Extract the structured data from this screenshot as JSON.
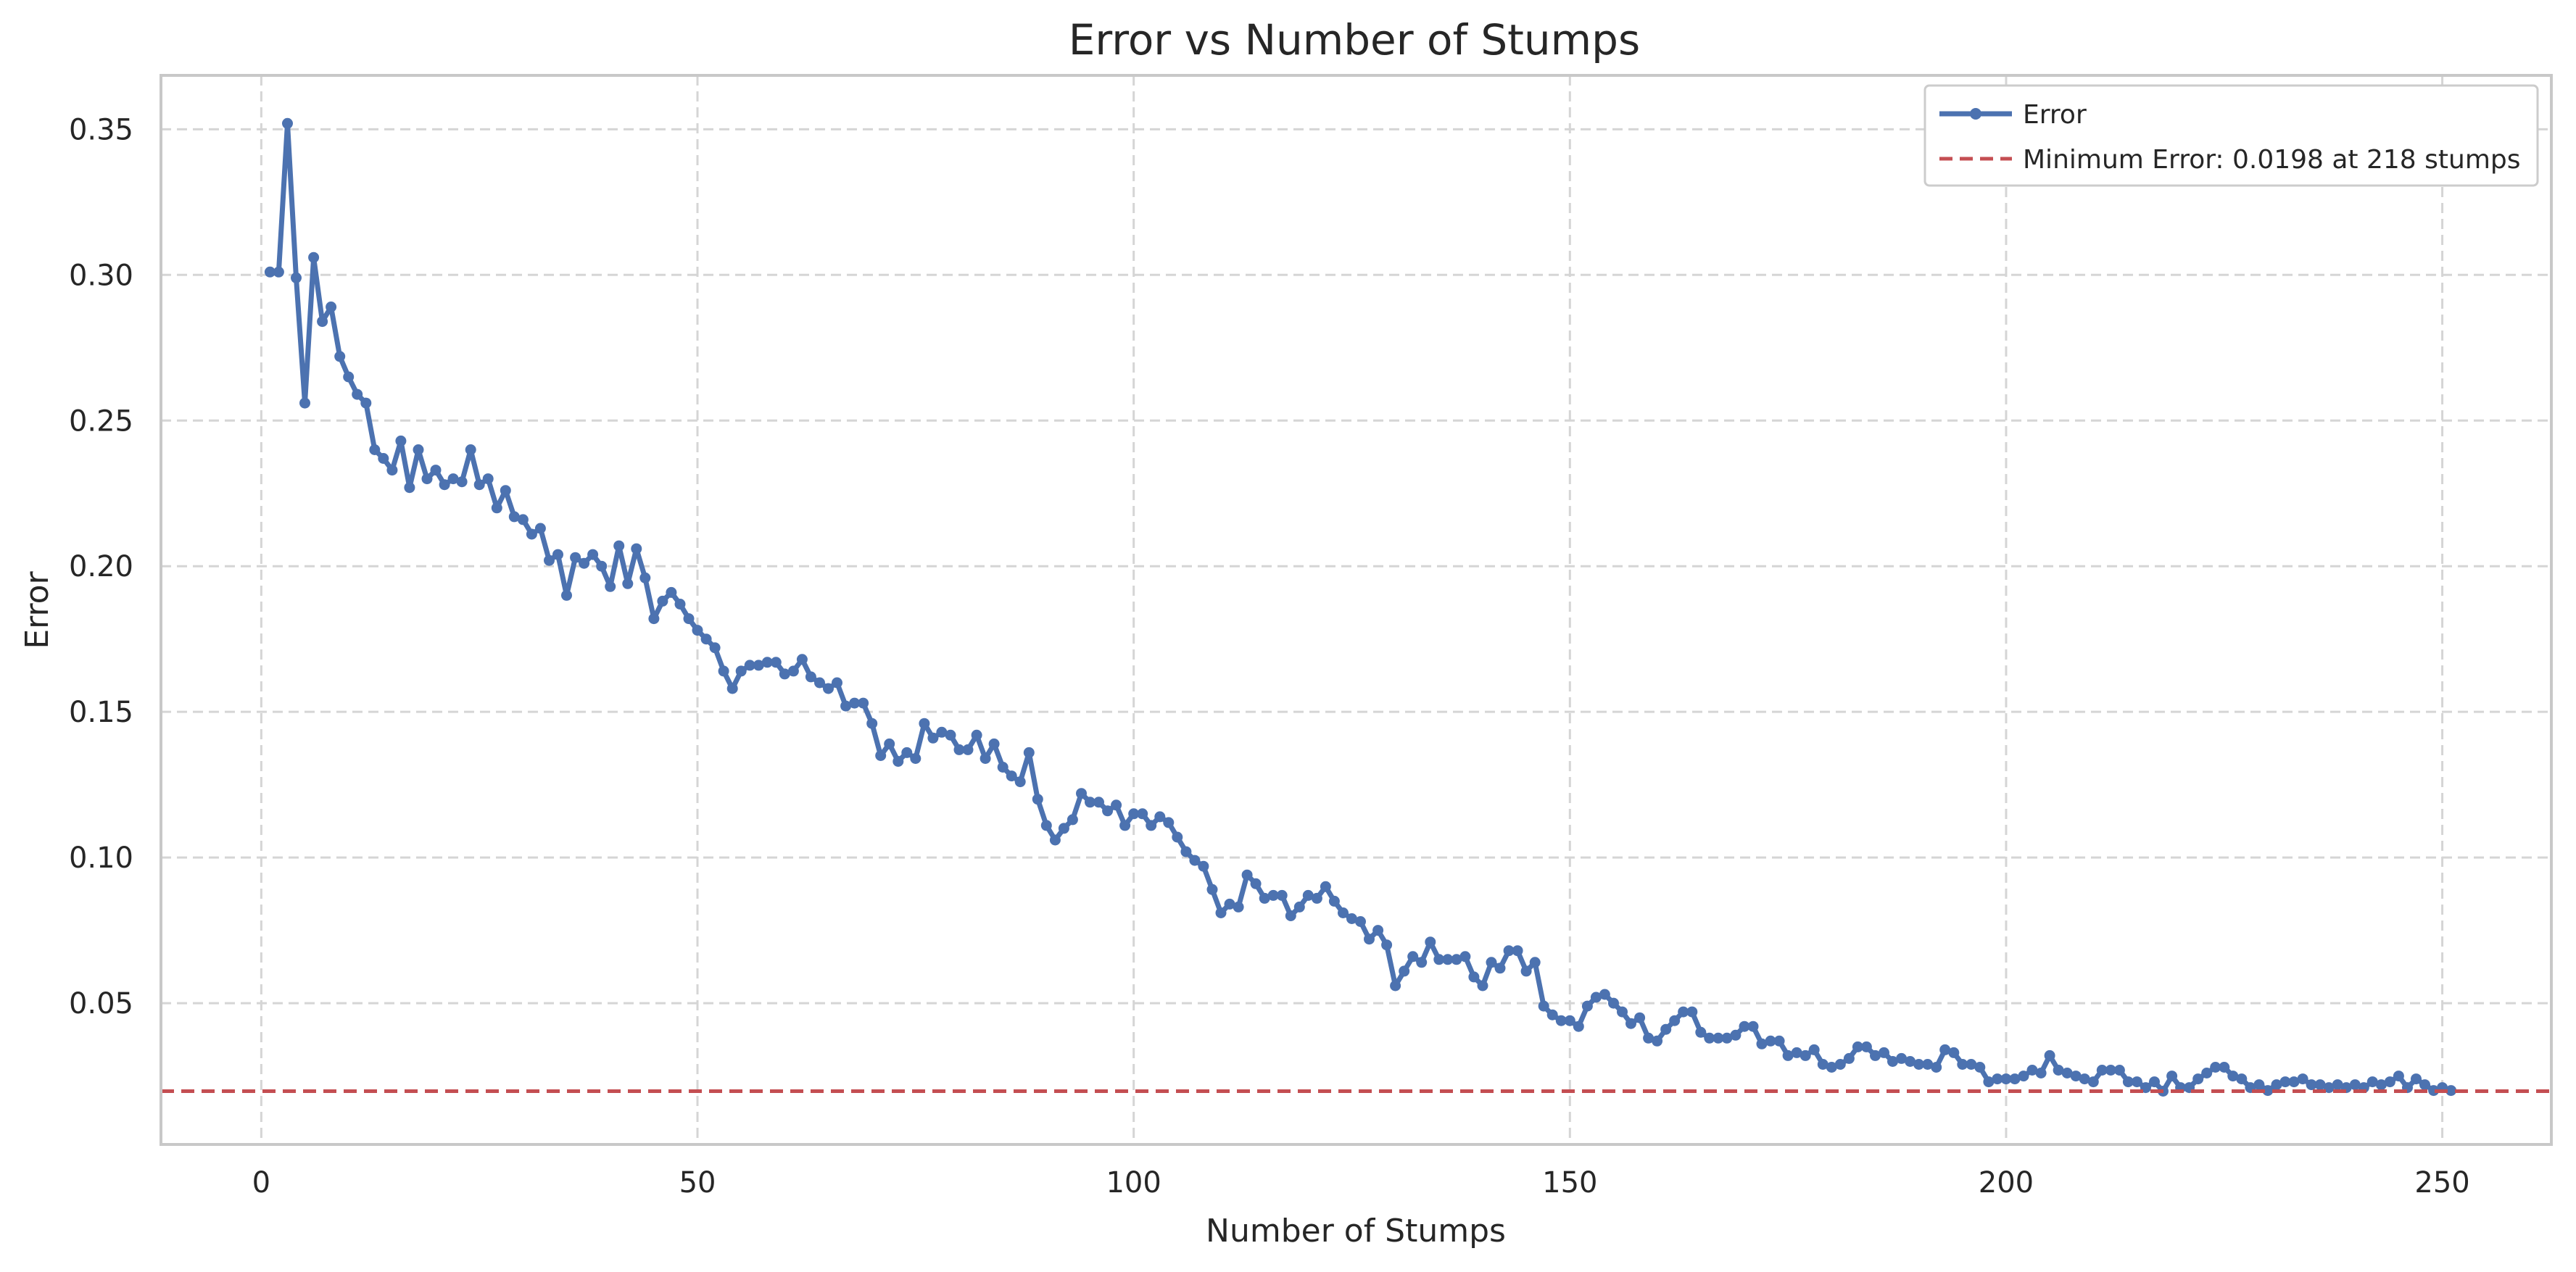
{
  "chart_data": {
    "type": "line",
    "title": "Error vs Number of Stumps",
    "xlabel": "Number of Stumps",
    "ylabel": "Error",
    "xlim": [
      -11.5,
      262.5
    ],
    "ylim": [
      0.0015,
      0.3685
    ],
    "x_ticks": [
      0,
      50,
      100,
      150,
      200,
      250
    ],
    "x_tick_labels": [
      "0",
      "50",
      "100",
      "150",
      "200",
      "250"
    ],
    "y_ticks": [
      0.05,
      0.1,
      0.15,
      0.2,
      0.25,
      0.3,
      0.35
    ],
    "y_tick_labels": [
      "0.05",
      "0.10",
      "0.15",
      "0.20",
      "0.25",
      "0.30",
      "0.35"
    ],
    "grid": true,
    "legend_position": "top-right",
    "series": [
      {
        "name": "Error",
        "color": "#4c72b0",
        "style": "solid-line-with-circle-markers",
        "x_start": 1,
        "x_step": 1,
        "values": [
          0.301,
          0.301,
          0.352,
          0.299,
          0.256,
          0.306,
          0.284,
          0.289,
          0.272,
          0.265,
          0.259,
          0.256,
          0.24,
          0.237,
          0.233,
          0.243,
          0.227,
          0.24,
          0.23,
          0.233,
          0.228,
          0.23,
          0.229,
          0.24,
          0.228,
          0.23,
          0.22,
          0.226,
          0.217,
          0.216,
          0.211,
          0.213,
          0.202,
          0.204,
          0.19,
          0.203,
          0.201,
          0.204,
          0.2,
          0.193,
          0.207,
          0.194,
          0.206,
          0.196,
          0.182,
          0.188,
          0.191,
          0.187,
          0.182,
          0.178,
          0.175,
          0.172,
          0.164,
          0.158,
          0.164,
          0.166,
          0.166,
          0.167,
          0.167,
          0.163,
          0.164,
          0.168,
          0.162,
          0.16,
          0.158,
          0.16,
          0.152,
          0.153,
          0.153,
          0.146,
          0.135,
          0.139,
          0.133,
          0.136,
          0.134,
          0.146,
          0.141,
          0.143,
          0.142,
          0.137,
          0.137,
          0.142,
          0.134,
          0.139,
          0.131,
          0.128,
          0.126,
          0.136,
          0.12,
          0.111,
          0.106,
          0.11,
          0.113,
          0.122,
          0.119,
          0.119,
          0.116,
          0.118,
          0.111,
          0.115,
          0.115,
          0.111,
          0.114,
          0.112,
          0.107,
          0.102,
          0.099,
          0.097,
          0.089,
          0.081,
          0.084,
          0.083,
          0.094,
          0.091,
          0.086,
          0.087,
          0.087,
          0.08,
          0.083,
          0.087,
          0.086,
          0.09,
          0.085,
          0.081,
          0.079,
          0.078,
          0.072,
          0.075,
          0.07,
          0.056,
          0.061,
          0.066,
          0.064,
          0.071,
          0.065,
          0.065,
          0.065,
          0.066,
          0.059,
          0.056,
          0.064,
          0.062,
          0.068,
          0.068,
          0.061,
          0.064,
          0.049,
          0.046,
          0.044,
          0.044,
          0.042,
          0.049,
          0.052,
          0.053,
          0.05,
          0.047,
          0.043,
          0.045,
          0.038,
          0.037,
          0.041,
          0.044,
          0.047,
          0.047,
          0.04,
          0.038,
          0.038,
          0.038,
          0.039,
          0.042,
          0.042,
          0.036,
          0.037,
          0.037,
          0.032,
          0.033,
          0.032,
          0.034,
          0.029,
          0.028,
          0.029,
          0.031,
          0.035,
          0.035,
          0.032,
          0.033,
          0.03,
          0.031,
          0.03,
          0.029,
          0.029,
          0.028,
          0.034,
          0.033,
          0.029,
          0.029,
          0.028,
          0.023,
          0.024,
          0.024,
          0.024,
          0.025,
          0.027,
          0.026,
          0.032,
          0.027,
          0.026,
          0.025,
          0.024,
          0.023,
          0.027,
          0.027,
          0.027,
          0.023,
          0.023,
          0.021,
          0.023,
          0.0198,
          0.025,
          0.021,
          0.021,
          0.024,
          0.026,
          0.028,
          0.028,
          0.025,
          0.024,
          0.021,
          0.022,
          0.02,
          0.022,
          0.023,
          0.023,
          0.024,
          0.022,
          0.022,
          0.021,
          0.022,
          0.021,
          0.022,
          0.021,
          0.023,
          0.022,
          0.023,
          0.025,
          0.021,
          0.024,
          0.022,
          0.02,
          0.021,
          0.02
        ]
      }
    ],
    "reference_lines": [
      {
        "name": "Minimum Error: 0.0198 at 218 stumps",
        "orientation": "horizontal",
        "y": 0.0198,
        "color": "#c44e52",
        "style": "dashed"
      }
    ]
  }
}
